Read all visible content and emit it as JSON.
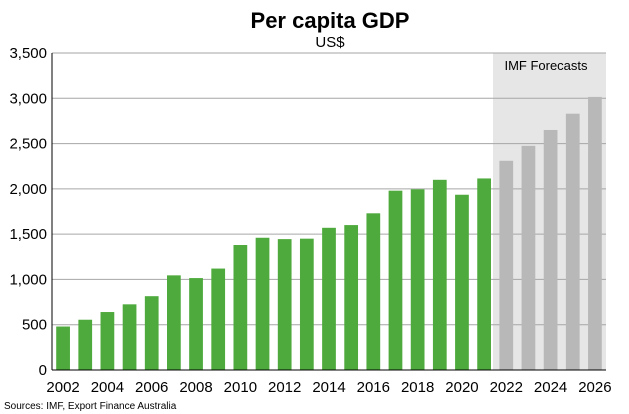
{
  "chart_data": {
    "type": "bar",
    "title": "Per capita GDP",
    "subtitle": "US$",
    "xlabel": "",
    "ylabel": "",
    "ylim": [
      0,
      3500
    ],
    "yticks": [
      "0",
      "500",
      "1,000",
      "1,500",
      "2,000",
      "2,500",
      "3,000",
      "3,500"
    ],
    "ytick_values": [
      0,
      500,
      1000,
      1500,
      2000,
      2500,
      3000,
      3500
    ],
    "grid": true,
    "categories": [
      "2002",
      "2003",
      "2004",
      "2005",
      "2006",
      "2007",
      "2008",
      "2009",
      "2010",
      "2011",
      "2012",
      "2013",
      "2014",
      "2015",
      "2016",
      "2017",
      "2018",
      "2019",
      "2020",
      "2021",
      "2022",
      "2023",
      "2024",
      "2025",
      "2026"
    ],
    "xtick_labels": [
      "2002",
      "2004",
      "2006",
      "2008",
      "2010",
      "2012",
      "2014",
      "2016",
      "2018",
      "2020",
      "2022",
      "2024",
      "2026"
    ],
    "series": [
      {
        "values": [
          480,
          555,
          640,
          725,
          815,
          1045,
          1015,
          1120,
          1380,
          1460,
          1445,
          1450,
          1570,
          1600,
          1730,
          1980,
          1995,
          2100,
          1935,
          2115,
          null,
          null,
          null,
          null,
          null
        ],
        "color": "#4eaa3c"
      },
      {
        "values": [
          null,
          null,
          null,
          null,
          null,
          null,
          null,
          null,
          null,
          null,
          null,
          null,
          null,
          null,
          null,
          null,
          null,
          null,
          null,
          null,
          2310,
          2475,
          2650,
          2830,
          3015
        ],
        "color": "#b8b8b8"
      }
    ],
    "forecast_region": {
      "label": "IMF Forecasts",
      "from": "2022",
      "to": "2026",
      "color": "#e6e6e6"
    },
    "source": "Sources: IMF, Export Finance Australia"
  }
}
